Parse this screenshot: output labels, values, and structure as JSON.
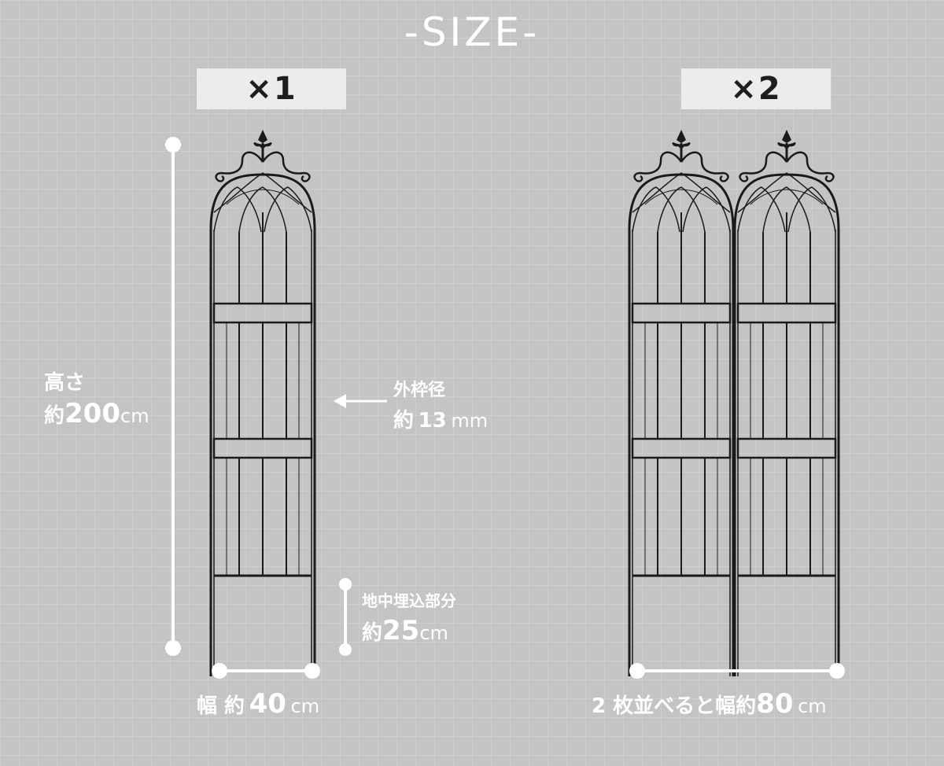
{
  "title": "-SIZE-",
  "single": {
    "badge": "×1",
    "height_label": "高さ",
    "height_prefix": "約",
    "height_value": "200",
    "height_unit": "cm",
    "frame_label": "外枠径",
    "frame_prefix": "約",
    "frame_value": "13",
    "frame_unit": "mm",
    "buried_label": "地中埋込部分",
    "buried_prefix": "約",
    "buried_value": "25",
    "buried_unit": "cm",
    "width_prefix": "幅 約",
    "width_value": "40",
    "width_unit": "cm"
  },
  "double": {
    "badge": "×2",
    "width_prefix": "2 枚並べると幅約",
    "width_value": "80",
    "width_unit": "cm"
  },
  "colors": {
    "background": "#c4c4c4",
    "badge_bg": "#ececec",
    "text": "#ffffff",
    "trellis": "#1a1a1a"
  },
  "icons": [
    "trellis-panel-icon",
    "dimension-line",
    "arrow-left-icon"
  ]
}
